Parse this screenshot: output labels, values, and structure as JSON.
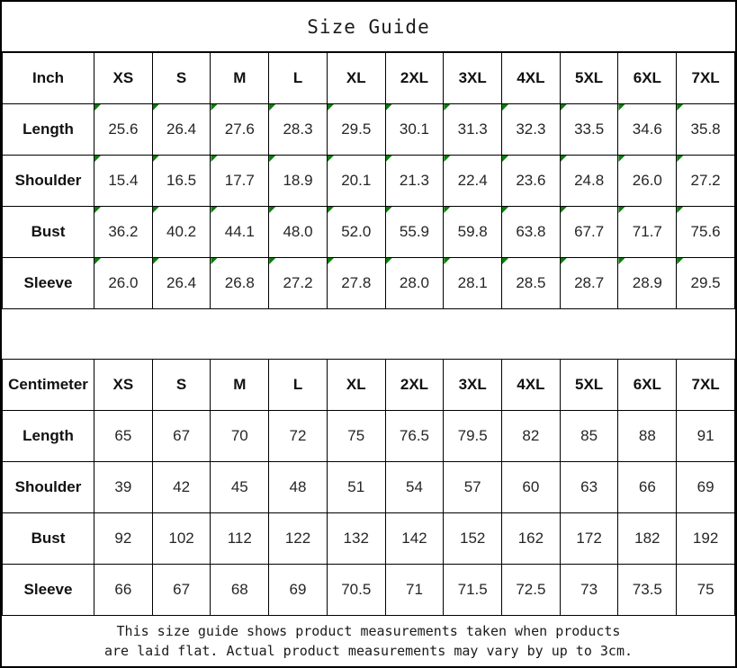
{
  "page": {
    "title": "Size Guide"
  },
  "colors": {
    "border": "#000000",
    "marker_green": "#0a7d0a",
    "background": "#ffffff",
    "text": "#1c1c1c"
  },
  "inch_table": {
    "unit_label": "Inch",
    "columns": [
      "XS",
      "S",
      "M",
      "L",
      "XL",
      "2XL",
      "3XL",
      "4XL",
      "5XL",
      "6XL",
      "7XL"
    ],
    "has_corner_markers": true,
    "rows": [
      {
        "label": "Length",
        "values": [
          "25.6",
          "26.4",
          "27.6",
          "28.3",
          "29.5",
          "30.1",
          "31.3",
          "32.3",
          "33.5",
          "34.6",
          "35.8"
        ]
      },
      {
        "label": "Shoulder",
        "values": [
          "15.4",
          "16.5",
          "17.7",
          "18.9",
          "20.1",
          "21.3",
          "22.4",
          "23.6",
          "24.8",
          "26.0",
          "27.2"
        ]
      },
      {
        "label": "Bust",
        "values": [
          "36.2",
          "40.2",
          "44.1",
          "48.0",
          "52.0",
          "55.9",
          "59.8",
          "63.8",
          "67.7",
          "71.7",
          "75.6"
        ]
      },
      {
        "label": "Sleeve",
        "values": [
          "26.0",
          "26.4",
          "26.8",
          "27.2",
          "27.8",
          "28.0",
          "28.1",
          "28.5",
          "28.7",
          "28.9",
          "29.5"
        ]
      }
    ]
  },
  "cm_table": {
    "unit_label": "Centimeter",
    "columns": [
      "XS",
      "S",
      "M",
      "L",
      "XL",
      "2XL",
      "3XL",
      "4XL",
      "5XL",
      "6XL",
      "7XL"
    ],
    "has_corner_markers": false,
    "rows": [
      {
        "label": "Length",
        "values": [
          "65",
          "67",
          "70",
          "72",
          "75",
          "76.5",
          "79.5",
          "82",
          "85",
          "88",
          "91"
        ]
      },
      {
        "label": "Shoulder",
        "values": [
          "39",
          "42",
          "45",
          "48",
          "51",
          "54",
          "57",
          "60",
          "63",
          "66",
          "69"
        ]
      },
      {
        "label": "Bust",
        "values": [
          "92",
          "102",
          "112",
          "122",
          "132",
          "142",
          "152",
          "162",
          "172",
          "182",
          "192"
        ]
      },
      {
        "label": "Sleeve",
        "values": [
          "66",
          "67",
          "68",
          "69",
          "70.5",
          "71",
          "71.5",
          "72.5",
          "73",
          "73.5",
          "75"
        ]
      }
    ]
  },
  "footer": {
    "line1": "This size guide shows product measurements taken when products",
    "line2": "are laid flat. Actual product measurements may vary by up to 3cm."
  }
}
